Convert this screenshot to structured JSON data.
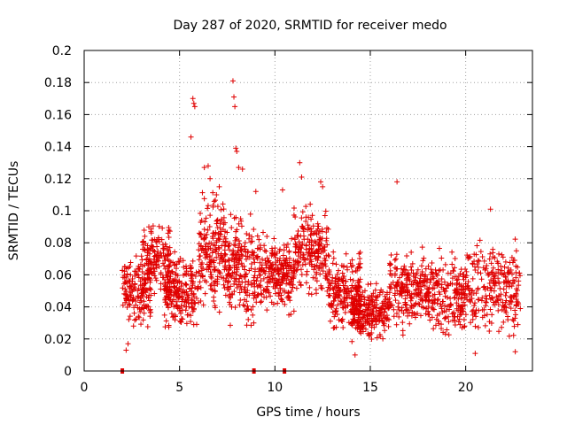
{
  "chart_data": {
    "type": "scatter",
    "title": "Day 287 of 2020, SRMTID for receiver medo",
    "xlabel": "GPS time / hours",
    "ylabel": "SRMTID / TECUs",
    "xlim": [
      0,
      23.5
    ],
    "ylim": [
      0,
      0.2
    ],
    "xticks": [
      0,
      5,
      10,
      15,
      20
    ],
    "yticks": [
      0,
      0.02,
      0.04,
      0.06,
      0.08,
      0.1,
      0.12,
      0.14,
      0.16,
      0.18,
      0.2
    ],
    "grid": true,
    "marker": "plus",
    "color": "#e00000",
    "outlier_points": [
      [
        5.6,
        0.146
      ],
      [
        5.7,
        0.17
      ],
      [
        5.75,
        0.167
      ],
      [
        5.8,
        0.165
      ],
      [
        7.8,
        0.181
      ],
      [
        7.85,
        0.171
      ],
      [
        7.9,
        0.165
      ],
      [
        7.95,
        0.139
      ],
      [
        8.0,
        0.137
      ],
      [
        6.3,
        0.127
      ],
      [
        6.5,
        0.128
      ],
      [
        6.6,
        0.12
      ],
      [
        8.1,
        0.127
      ],
      [
        8.3,
        0.126
      ],
      [
        11.3,
        0.13
      ],
      [
        11.4,
        0.121
      ],
      [
        12.4,
        0.118
      ],
      [
        12.5,
        0.115
      ],
      [
        10.4,
        0.113
      ],
      [
        9.0,
        0.112
      ],
      [
        16.4,
        0.118
      ],
      [
        21.3,
        0.101
      ],
      [
        2.2,
        0.013
      ],
      [
        2.3,
        0.017
      ],
      [
        14.2,
        0.01
      ],
      [
        20.5,
        0.011
      ],
      [
        22.6,
        0.012
      ]
    ],
    "density_bands": [
      {
        "x": [
          2.0,
          3.5
        ],
        "y": [
          0.02,
          0.08
        ],
        "n": 170
      },
      {
        "x": [
          3.0,
          4.5
        ],
        "y": [
          0.04,
          0.1
        ],
        "n": 140
      },
      {
        "x": [
          4.2,
          6.0
        ],
        "y": [
          0.02,
          0.08
        ],
        "n": 220
      },
      {
        "x": [
          6.0,
          7.5
        ],
        "y": [
          0.03,
          0.12
        ],
        "n": 200
      },
      {
        "x": [
          7.5,
          9.0
        ],
        "y": [
          0.02,
          0.11
        ],
        "n": 190
      },
      {
        "x": [
          9.0,
          11.0
        ],
        "y": [
          0.03,
          0.09
        ],
        "n": 230
      },
      {
        "x": [
          11.0,
          12.8
        ],
        "y": [
          0.04,
          0.11
        ],
        "n": 210
      },
      {
        "x": [
          12.8,
          14.5
        ],
        "y": [
          0.02,
          0.08
        ],
        "n": 200
      },
      {
        "x": [
          14.0,
          16.0
        ],
        "y": [
          0.015,
          0.06
        ],
        "n": 240
      },
      {
        "x": [
          16.0,
          18.0
        ],
        "y": [
          0.02,
          0.08
        ],
        "n": 210
      },
      {
        "x": [
          18.0,
          20.0
        ],
        "y": [
          0.015,
          0.08
        ],
        "n": 210
      },
      {
        "x": [
          20.0,
          22.9
        ],
        "y": [
          0.015,
          0.09
        ],
        "n": 250
      }
    ],
    "baseline_markers": [
      2.0,
      8.9,
      10.5
    ],
    "baseline_marker_color": "#e00000"
  }
}
